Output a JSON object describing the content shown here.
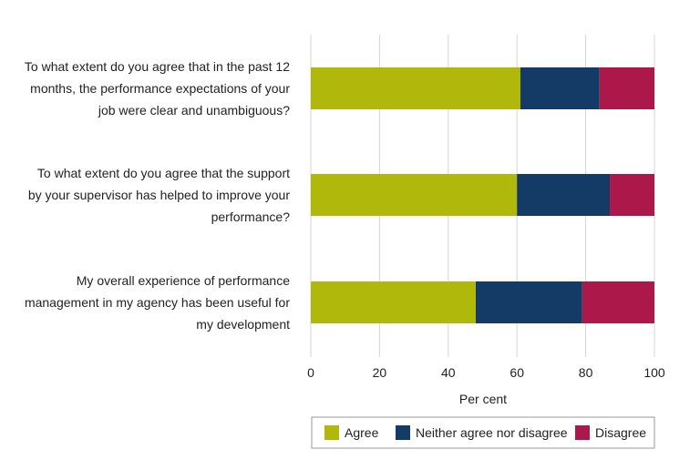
{
  "chart_data": {
    "type": "bar",
    "orientation": "horizontal",
    "stacked": true,
    "categories": [
      [
        "To what extent do you agree that in the past 12",
        "months, the performance expectations of your",
        "job were clear and unambiguous?"
      ],
      [
        "To what extent do you agree that the support",
        "by your supervisor has helped to improve your",
        "performance?"
      ],
      [
        "My overall experience of performance",
        "management in my agency has been useful for",
        "my development"
      ]
    ],
    "series": [
      {
        "name": "Agree",
        "color": "#b0b80c",
        "values": [
          61,
          60,
          48
        ]
      },
      {
        "name": "Neither agree nor disagree",
        "color": "#143a66",
        "values": [
          23,
          27,
          31
        ]
      },
      {
        "name": "Disagree",
        "color": "#ab1849",
        "values": [
          16,
          13,
          21
        ]
      }
    ],
    "xlabel": "Per cent",
    "xlim": [
      0,
      100
    ],
    "xticks": [
      0,
      20,
      40,
      60,
      80,
      100
    ],
    "grid": true,
    "legend_position": "bottom"
  }
}
